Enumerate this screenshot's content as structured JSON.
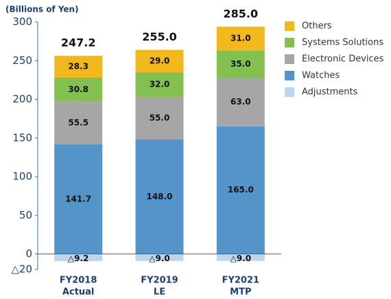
{
  "chart_data": {
    "type": "stacked-bar",
    "y_label": "(Billions of Yen)",
    "categories": [
      [
        "FY2018",
        "Actual"
      ],
      [
        "FY2019",
        "LE"
      ],
      [
        "FY2021",
        "MTP"
      ]
    ],
    "series": [
      {
        "name": "Others",
        "color": "#f2b81e",
        "values": [
          28.3,
          29,
          31
        ],
        "value_labels": [
          "28.3",
          "29.0",
          "31.0"
        ]
      },
      {
        "name": "Systems Solutions",
        "color": "#84c050",
        "values": [
          30.8,
          32,
          35
        ],
        "value_labels": [
          "30.8",
          "32.0",
          "35.0"
        ]
      },
      {
        "name": "Electronic Devices",
        "color": "#a6a6a6",
        "values": [
          55.5,
          55,
          63
        ],
        "value_labels": [
          "55.5",
          "55.0",
          "63.0"
        ]
      },
      {
        "name": "Watches",
        "color": "#5594c9",
        "values": [
          141.7,
          148,
          165
        ],
        "value_labels": [
          "141.7",
          "148.0",
          "165.0"
        ]
      },
      {
        "name": "Adjustments",
        "color": "#bdd6ee",
        "values": [
          -9.2,
          -9,
          -9
        ],
        "value_labels": [
          "△9.2",
          "△9.0",
          "△9.0"
        ]
      }
    ],
    "totals": [
      247.2,
      255,
      285
    ],
    "total_labels": [
      "247.2",
      "255.0",
      "285.0"
    ],
    "ylim": [
      -20,
      300
    ],
    "yticks": [
      {
        "value": -20,
        "label": "△20"
      },
      0,
      50,
      100,
      150,
      200,
      250,
      300
    ]
  }
}
